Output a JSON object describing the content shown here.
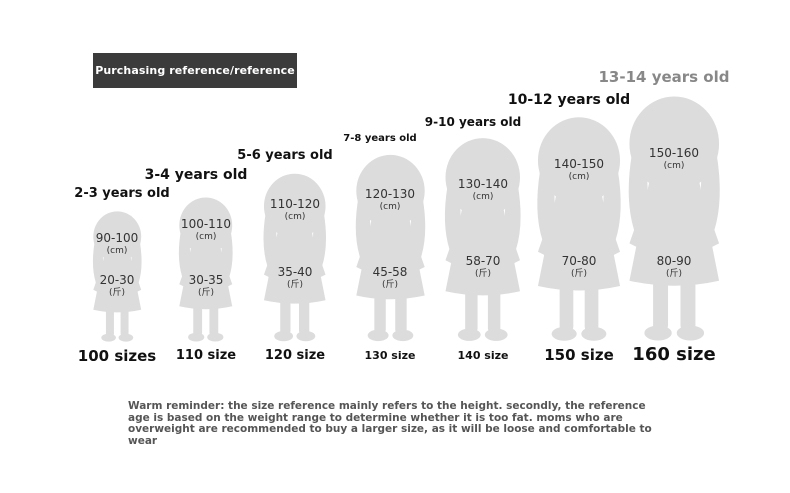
{
  "badge_label": "Purchasing reference/reference",
  "figure_color": "#dcdcdc",
  "age_highlight_color": "#888888",
  "columns": [
    {
      "age": "2-3 years old",
      "height": "90-100",
      "height_unit": "(cm)",
      "weight": "20-30",
      "weight_unit": "(斤)",
      "size": "100 sizes"
    },
    {
      "age": "3-4 years old",
      "height": "100-110",
      "height_unit": "(cm)",
      "weight": "30-35",
      "weight_unit": "(斤)",
      "size": "110 size"
    },
    {
      "age": "5-6 years old",
      "height": "110-120",
      "height_unit": "(cm)",
      "weight": "35-40",
      "weight_unit": "(斤)",
      "size": "120 size"
    },
    {
      "age": "7-8 years old",
      "height": "120-130",
      "height_unit": "(cm)",
      "weight": "45-58",
      "weight_unit": "(斤)",
      "size": "130 size"
    },
    {
      "age": "9-10 years old",
      "height": "130-140",
      "height_unit": "(cm)",
      "weight": "58-70",
      "weight_unit": "(斤)",
      "size": "140 size"
    },
    {
      "age": "10-12 years old",
      "height": "140-150",
      "height_unit": "(cm)",
      "weight": "70-80",
      "weight_unit": "(斤)",
      "size": "150 size"
    },
    {
      "age": "13-14 years old",
      "height": "150-160",
      "height_unit": "(cm)",
      "weight": "80-90",
      "weight_unit": "(斤)",
      "size": "160 size"
    }
  ],
  "reminder": "Warm reminder: the size reference mainly refers to the height. secondly, the reference age is based on the weight range to determine whether it is too fat. moms who are overweight are recommended to buy a larger size, as it will be loose and comfortable to wear"
}
